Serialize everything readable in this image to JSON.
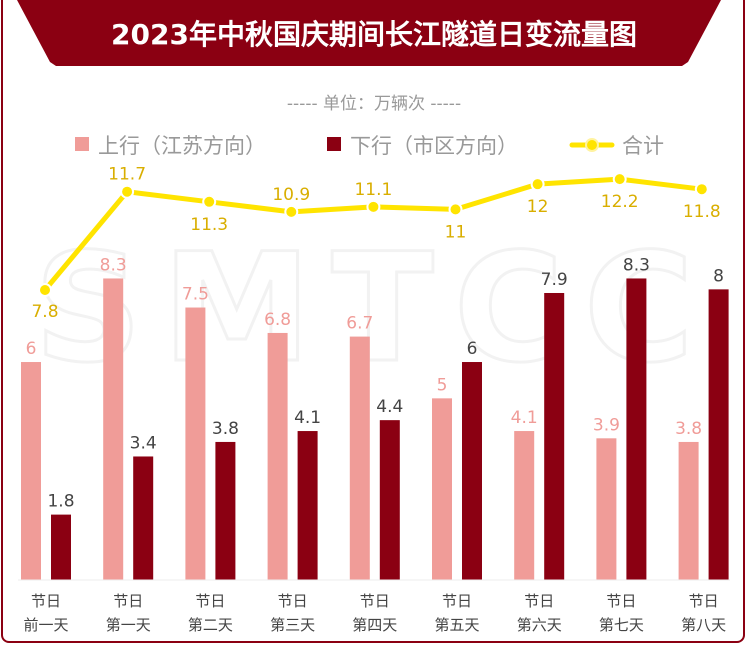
{
  "chart_data": {
    "type": "bar+line",
    "title": "2023年中秋国庆期间长江隧道日变流量图",
    "subtitle": "----- 单位：万辆次 -----",
    "watermark": "SMTCC",
    "categories": [
      [
        "节日",
        "前一天"
      ],
      [
        "节日",
        "第一天"
      ],
      [
        "节日",
        "第二天"
      ],
      [
        "节日",
        "第三天"
      ],
      [
        "节日",
        "第四天"
      ],
      [
        "节日",
        "第五天"
      ],
      [
        "节日",
        "第六天"
      ],
      [
        "节日",
        "第七天"
      ],
      [
        "节日",
        "第八天"
      ]
    ],
    "series": [
      {
        "name": "上行（江苏方向）",
        "type": "bar",
        "color": "#f09c98",
        "label_color": "#f09c98",
        "values": [
          6,
          8.3,
          7.5,
          6.8,
          6.7,
          5,
          4.1,
          3.9,
          3.8
        ]
      },
      {
        "name": "下行（市区方向）",
        "type": "bar",
        "color": "#8b0012",
        "label_color": "#444444",
        "values": [
          1.8,
          3.4,
          3.8,
          4.1,
          4.4,
          6,
          7.9,
          8.3,
          8
        ]
      },
      {
        "name": "合计",
        "type": "line",
        "color": "#ffe400",
        "label_color": "#d9ae00",
        "values": [
          7.8,
          11.7,
          11.3,
          10.9,
          11.1,
          11,
          12,
          12.2,
          11.8
        ]
      }
    ],
    "legend_position": "top",
    "grid": false,
    "colors": {
      "banner": "#8b0012",
      "title_text": "#ffffff",
      "subtitle_text": "#999999",
      "axis_text": "#444444"
    }
  }
}
